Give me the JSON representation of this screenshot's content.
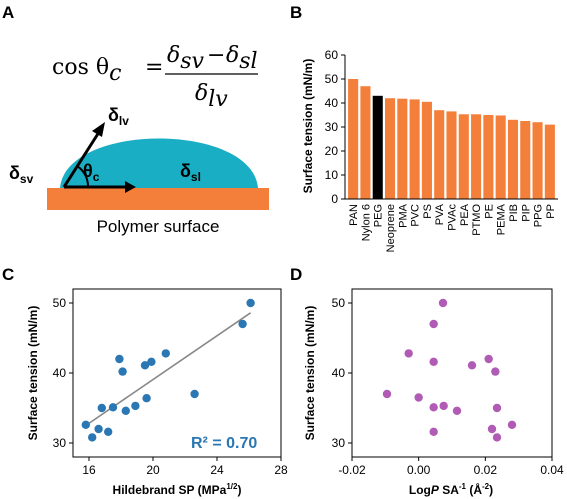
{
  "panel_a": {
    "label": "A",
    "equation": {
      "lhs": "cos θ",
      "lhs_sub": "c",
      "eq": "=",
      "num_a": "δ",
      "num_a_sub": "sv",
      "minus": "−",
      "num_b": "δ",
      "num_b_sub": "sl",
      "den": "δ",
      "den_sub": "lv"
    },
    "drop": {
      "delta": "δ",
      "lv_sub": "lv",
      "sv_sub": "sv",
      "sl_sub": "sl",
      "theta": "θ",
      "theta_sub": "c",
      "surface_label": "Polymer surface"
    },
    "colors": {
      "droplet": "#1aaec4",
      "surface": "#f47f3a"
    }
  },
  "chart_data": [
    {
      "panel": "B",
      "type": "bar",
      "categories": [
        "PAN",
        "Nylon 6",
        "PEG",
        "Neoprene",
        "PMA",
        "PVC",
        "PS",
        "PVA",
        "PVAc",
        "PEA",
        "PTMO",
        "PE",
        "PEMA",
        "PIB",
        "PIP",
        "PPG",
        "PP"
      ],
      "values": [
        50,
        47,
        43,
        42,
        41.8,
        41.5,
        40.5,
        37,
        36.5,
        35.3,
        35.3,
        35,
        34.8,
        33,
        32.5,
        32,
        31
      ],
      "highlight_index": 2,
      "colors": {
        "bar": "#f47f3a",
        "highlight": "#000000"
      },
      "ylabel": "Surface tension (mN/m)",
      "ylim": [
        0,
        60
      ],
      "yticks": [
        "0",
        "10",
        "20",
        "30",
        "40",
        "50",
        "60"
      ]
    },
    {
      "panel": "C",
      "type": "scatter",
      "points": [
        {
          "x": 15.8,
          "y": 32.6
        },
        {
          "x": 16.2,
          "y": 30.8
        },
        {
          "x": 16.6,
          "y": 32.0
        },
        {
          "x": 16.8,
          "y": 35.0
        },
        {
          "x": 17.2,
          "y": 31.6
        },
        {
          "x": 17.5,
          "y": 35.1
        },
        {
          "x": 17.9,
          "y": 42.0
        },
        {
          "x": 18.1,
          "y": 40.2
        },
        {
          "x": 18.3,
          "y": 34.6
        },
        {
          "x": 18.9,
          "y": 35.3
        },
        {
          "x": 19.5,
          "y": 41.1
        },
        {
          "x": 19.6,
          "y": 36.4
        },
        {
          "x": 19.9,
          "y": 41.6
        },
        {
          "x": 20.8,
          "y": 42.8
        },
        {
          "x": 22.6,
          "y": 37.0
        },
        {
          "x": 25.6,
          "y": 47.0
        },
        {
          "x": 26.1,
          "y": 50.0
        }
      ],
      "fit": {
        "x": [
          15.8,
          26.1
        ],
        "y": [
          32.5,
          48.6
        ]
      },
      "colors": {
        "point": "#2a77b4",
        "fit": "#888888"
      },
      "annotation": "R² = 0.70",
      "xlabel": "Hildebrand SP (MPa1/2)",
      "xlabel_main": "Hildebrand SP (MPa",
      "xlabel_sup": "1/2",
      "xlabel_close": ")",
      "ylabel": "Surface tension (mN/m)",
      "xlim": [
        15,
        28
      ],
      "ylim": [
        28,
        52
      ],
      "xticks": [
        "16",
        "20",
        "24",
        "28"
      ],
      "yticks": [
        "30",
        "40",
        "50"
      ]
    },
    {
      "panel": "D",
      "type": "scatter",
      "points": [
        {
          "x": -0.0095,
          "y": 37.0
        },
        {
          "x": -0.003,
          "y": 42.8
        },
        {
          "x": 0.0,
          "y": 36.5
        },
        {
          "x": 0.0045,
          "y": 47.0
        },
        {
          "x": 0.0045,
          "y": 41.6
        },
        {
          "x": 0.0045,
          "y": 35.1
        },
        {
          "x": 0.0045,
          "y": 31.6
        },
        {
          "x": 0.0073,
          "y": 50.0
        },
        {
          "x": 0.0075,
          "y": 35.3
        },
        {
          "x": 0.0115,
          "y": 34.6
        },
        {
          "x": 0.016,
          "y": 41.1
        },
        {
          "x": 0.021,
          "y": 42.0
        },
        {
          "x": 0.022,
          "y": 32.0
        },
        {
          "x": 0.023,
          "y": 40.2
        },
        {
          "x": 0.0235,
          "y": 35.0
        },
        {
          "x": 0.0235,
          "y": 30.8
        },
        {
          "x": 0.028,
          "y": 32.6
        }
      ],
      "colors": {
        "point": "#b05cb5"
      },
      "xlabel": "LogP SA-1 (Å-2)",
      "xlabel_parts": {
        "a": "Log",
        "b": "P",
        "c": " SA",
        "d": "-1",
        "e": " (Å",
        "f": "-2",
        "g": ")"
      },
      "ylabel": "Surface tension (mN/m)",
      "xlim": [
        -0.02,
        0.04
      ],
      "ylim": [
        28,
        52
      ],
      "xticks": [
        "-0.02",
        "0.00",
        "0.02",
        "0.04"
      ],
      "yticks": [
        "30",
        "40",
        "50"
      ]
    }
  ]
}
